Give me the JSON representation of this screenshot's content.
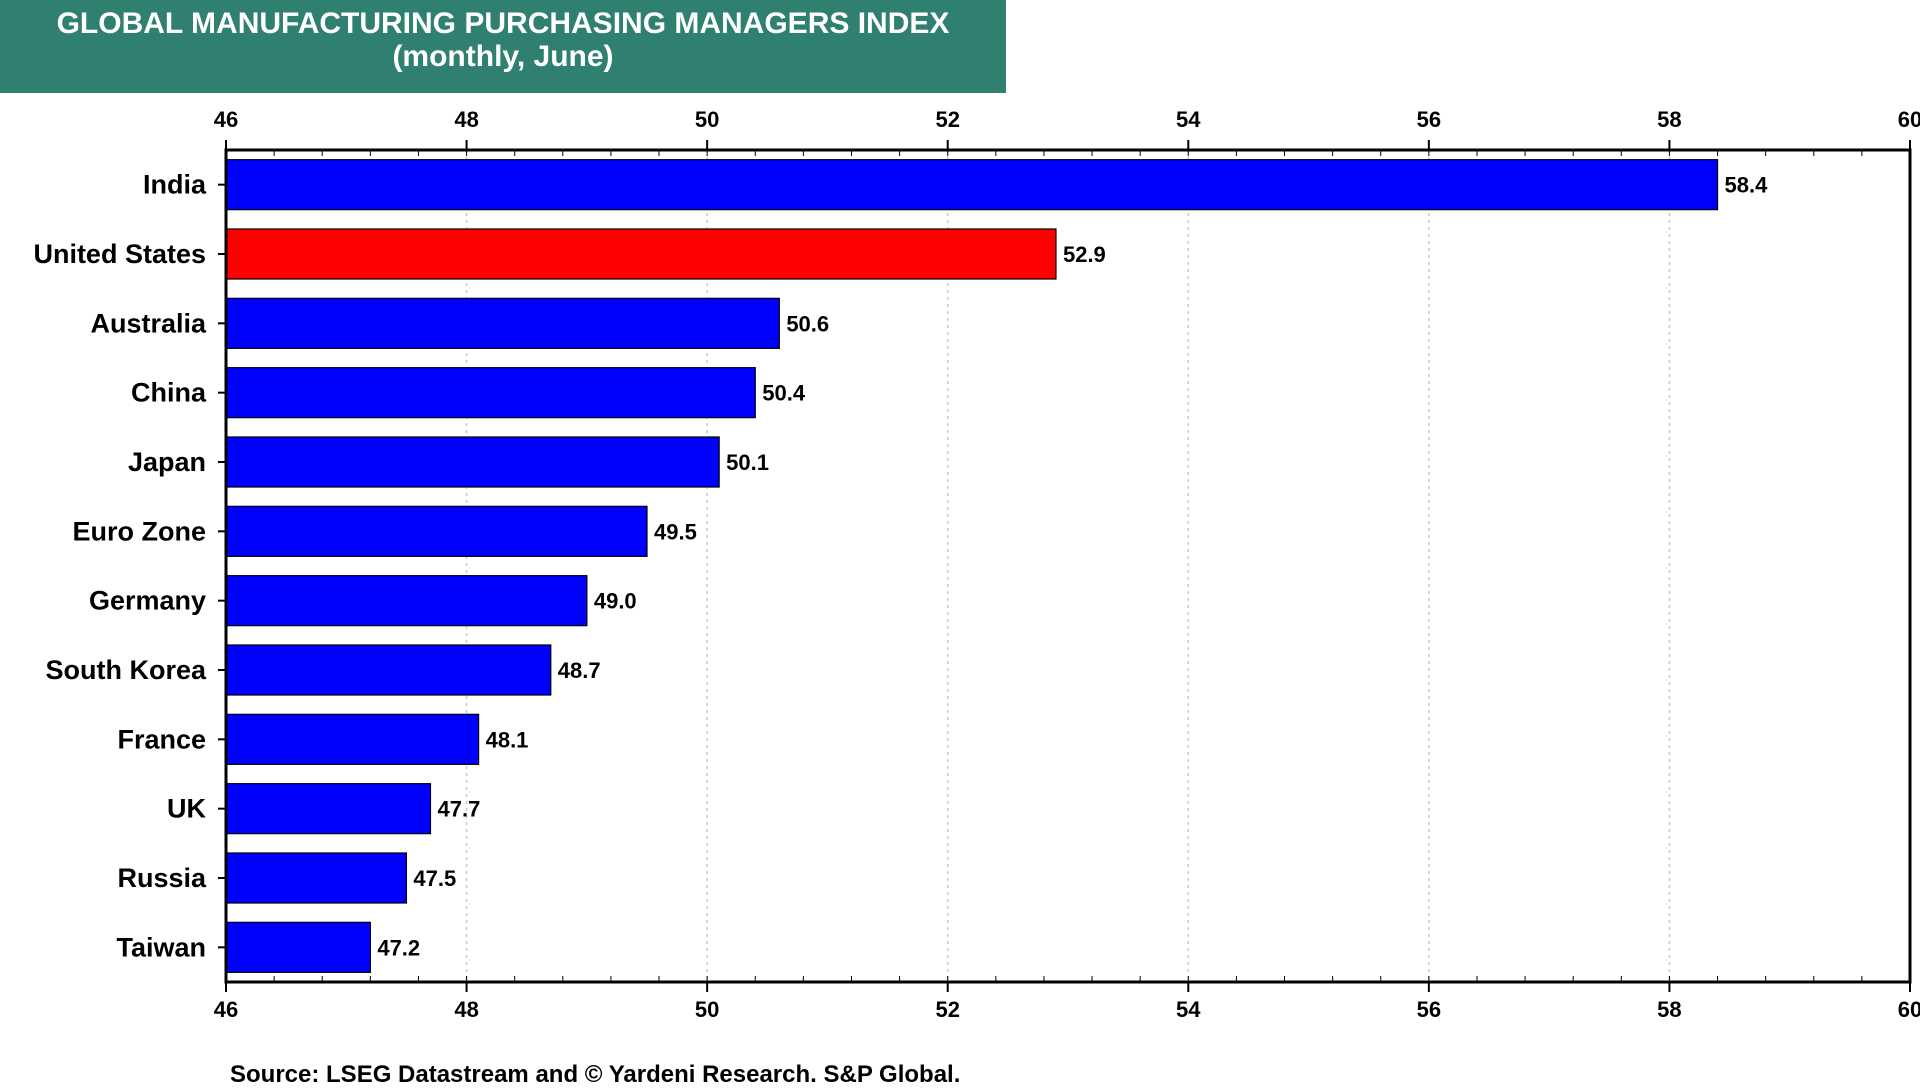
{
  "header": {
    "title_line1": "GLOBAL MANUFACTURING PURCHASING MANAGERS INDEX",
    "title_line2": "(monthly, June)"
  },
  "source": "Source: LSEG Datastream and © Yardeni Research. S&P Global.",
  "colors": {
    "title_bg": "#2f8070",
    "bar_default": "#0000ff",
    "bar_highlight": "#ff0000",
    "grid": "#c8c8c8"
  },
  "chart_data": {
    "type": "bar",
    "orientation": "horizontal",
    "title": "GLOBAL MANUFACTURING PURCHASING MANAGERS INDEX",
    "subtitle": "(monthly, June)",
    "xlim": [
      46,
      60
    ],
    "x_ticks": [
      46,
      48,
      50,
      52,
      54,
      56,
      58,
      60
    ],
    "x_minor_step": 0.4,
    "grid": true,
    "highlight_category": "United States",
    "categories": [
      "India",
      "United States",
      "Australia",
      "China",
      "Japan",
      "Euro Zone",
      "Germany",
      "South Korea",
      "France",
      "UK",
      "Russia",
      "Taiwan"
    ],
    "values": [
      58.4,
      52.9,
      50.6,
      50.4,
      50.1,
      49.5,
      49.0,
      48.7,
      48.1,
      47.7,
      47.5,
      47.2
    ],
    "value_labels": [
      "58.4",
      "52.9",
      "50.6",
      "50.4",
      "50.1",
      "49.5",
      "49.0",
      "48.7",
      "48.1",
      "47.7",
      "47.5",
      "47.2"
    ]
  }
}
